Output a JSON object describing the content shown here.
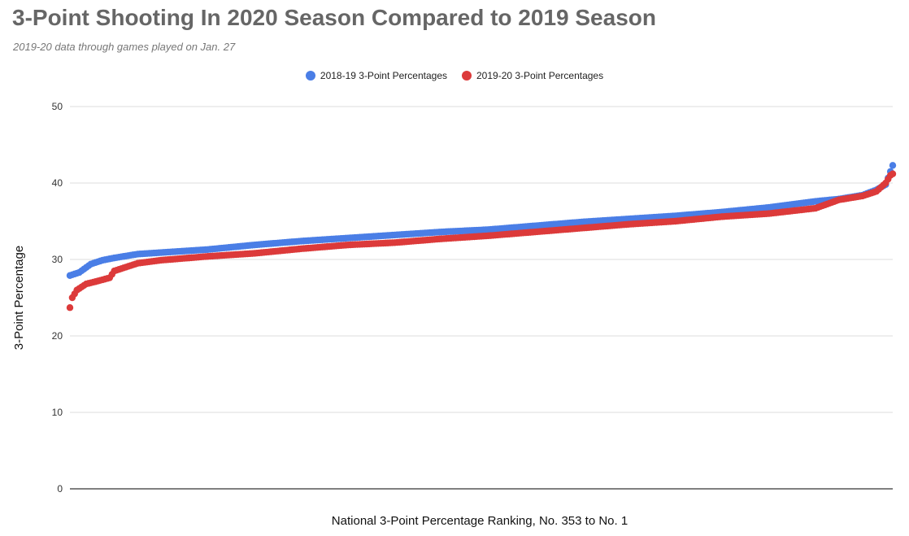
{
  "header": {
    "title": "3-Point Shooting In 2020 Season Compared to 2019 Season",
    "subtitle": "2019-20 data through games played on Jan. 27"
  },
  "colors": {
    "series_2019": "#4a7ee6",
    "series_2020": "#dc3a3a",
    "grid": "#dddddd",
    "baseline": "#333333"
  },
  "chart_data": {
    "type": "scatter",
    "title": "3-Point Shooting In 2020 Season Compared to 2019 Season",
    "subtitle": "2019-20 data through games played on Jan. 27",
    "xlabel": "National 3-Point Percentage Ranking, No. 353 to No. 1",
    "ylabel": "3-Point Percentage",
    "ylim": [
      0,
      50
    ],
    "yticks": [
      "0",
      "10",
      "20",
      "30",
      "40",
      "50"
    ],
    "xlim": [
      1,
      353
    ],
    "grid": true,
    "legend": "top",
    "legend_entries": [
      "2018-19 3-Point Percentages",
      "2019-20 3-Point Percentages"
    ],
    "series": [
      {
        "name": "2018-19 3-Point Percentages",
        "color": "#4a7ee6",
        "x": [
          1,
          5,
          10,
          15,
          20,
          30,
          40,
          60,
          80,
          100,
          120,
          140,
          160,
          180,
          200,
          220,
          240,
          260,
          280,
          300,
          320,
          330,
          340,
          346,
          350,
          352,
          353
        ],
        "y": [
          27.9,
          28.3,
          29.4,
          29.9,
          30.2,
          30.7,
          30.9,
          31.3,
          31.9,
          32.4,
          32.8,
          33.2,
          33.6,
          33.9,
          34.4,
          34.9,
          35.3,
          35.7,
          36.2,
          36.8,
          37.6,
          37.9,
          38.4,
          39.1,
          39.8,
          41.5,
          42.3
        ]
      },
      {
        "name": "2019-20 3-Point Percentages",
        "color": "#dc3a3a",
        "x": [
          1,
          2,
          4,
          8,
          12,
          18,
          20,
          24,
          30,
          40,
          60,
          80,
          100,
          120,
          140,
          160,
          180,
          200,
          220,
          240,
          260,
          280,
          300,
          320,
          330,
          340,
          346,
          350,
          352,
          353
        ],
        "y": [
          23.7,
          25.0,
          26.0,
          26.8,
          27.1,
          27.6,
          28.5,
          28.9,
          29.5,
          29.9,
          30.4,
          30.8,
          31.4,
          31.9,
          32.2,
          32.7,
          33.1,
          33.6,
          34.1,
          34.6,
          35.0,
          35.6,
          36.0,
          36.7,
          37.8,
          38.3,
          38.9,
          40.0,
          41.0,
          41.2
        ]
      }
    ]
  }
}
